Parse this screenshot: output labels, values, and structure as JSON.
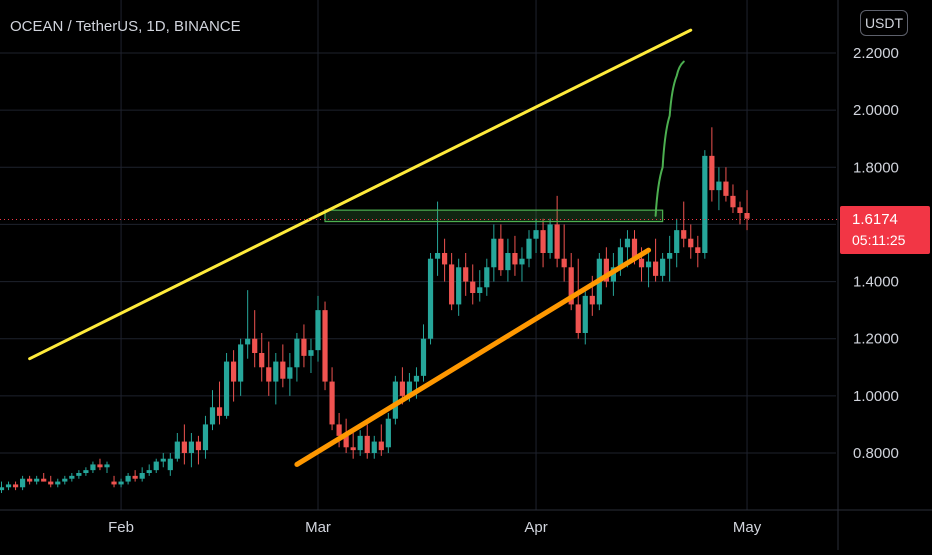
{
  "header": {
    "symbol_title": "OCEAN / TetherUS, 1D, BINANCE",
    "unit_label": "USDT"
  },
  "last_price": {
    "value": "1.6174",
    "countdown": "05:11:25"
  },
  "colors": {
    "background": "#000000",
    "grid": "#1e222d",
    "up": "#26a69a",
    "down": "#ef5350",
    "upper_trendline": "#ffeb3b",
    "lower_trendline": "#ff9800",
    "zone": "#4caf50",
    "projection": "#4caf50",
    "price_line": "#f23645",
    "axis_text": "#d1d4dc"
  },
  "chart_data": {
    "type": "candlestick",
    "title": "OCEAN / TetherUS, 1D, BINANCE",
    "y_unit": "USDT",
    "ylim": [
      0.65,
      2.33
    ],
    "y_ticks": [
      "0.8000",
      "1.0000",
      "1.2000",
      "1.4000",
      "1.6000",
      "1.8000",
      "2.0000",
      "2.2000"
    ],
    "x_ticks": [
      {
        "label": "Feb",
        "date": "2021-02-01"
      },
      {
        "label": "Mar",
        "date": "2021-03-01"
      },
      {
        "label": "Apr",
        "date": "2021-04-01"
      },
      {
        "label": "May",
        "date": "2021-05-01"
      }
    ],
    "grid": true,
    "x_start": "2021-01-12",
    "candles": [
      [
        0.66,
        0.67,
        0.66,
        0.66
      ],
      [
        0.66,
        0.66,
        0.65,
        0.66
      ],
      [
        0.66,
        0.68,
        0.66,
        0.67
      ],
      [
        0.67,
        0.7,
        0.66,
        0.68
      ],
      [
        0.68,
        0.7,
        0.67,
        0.69
      ],
      [
        0.69,
        0.7,
        0.67,
        0.68
      ],
      [
        0.68,
        0.72,
        0.67,
        0.71
      ],
      [
        0.71,
        0.72,
        0.69,
        0.7
      ],
      [
        0.7,
        0.72,
        0.69,
        0.71
      ],
      [
        0.71,
        0.73,
        0.7,
        0.7
      ],
      [
        0.7,
        0.72,
        0.68,
        0.69
      ],
      [
        0.69,
        0.71,
        0.68,
        0.7
      ],
      [
        0.7,
        0.72,
        0.69,
        0.71
      ],
      [
        0.71,
        0.73,
        0.7,
        0.72
      ],
      [
        0.72,
        0.74,
        0.71,
        0.73
      ],
      [
        0.73,
        0.75,
        0.72,
        0.74
      ],
      [
        0.74,
        0.77,
        0.73,
        0.76
      ],
      [
        0.76,
        0.78,
        0.74,
        0.75
      ],
      [
        0.75,
        0.77,
        0.73,
        0.76
      ],
      [
        0.7,
        0.72,
        0.68,
        0.69
      ],
      [
        0.69,
        0.71,
        0.68,
        0.7
      ],
      [
        0.7,
        0.73,
        0.69,
        0.72
      ],
      [
        0.72,
        0.74,
        0.7,
        0.71
      ],
      [
        0.71,
        0.75,
        0.7,
        0.73
      ],
      [
        0.73,
        0.76,
        0.72,
        0.74
      ],
      [
        0.74,
        0.78,
        0.73,
        0.77
      ],
      [
        0.77,
        0.8,
        0.75,
        0.78
      ],
      [
        0.74,
        0.8,
        0.72,
        0.78
      ],
      [
        0.78,
        0.87,
        0.77,
        0.84
      ],
      [
        0.84,
        0.9,
        0.76,
        0.8
      ],
      [
        0.8,
        0.87,
        0.75,
        0.84
      ],
      [
        0.84,
        0.86,
        0.76,
        0.81
      ],
      [
        0.81,
        0.93,
        0.78,
        0.9
      ],
      [
        0.9,
        1.02,
        0.88,
        0.96
      ],
      [
        0.96,
        1.05,
        0.9,
        0.93
      ],
      [
        0.93,
        1.15,
        0.92,
        1.12
      ],
      [
        1.12,
        1.16,
        0.98,
        1.05
      ],
      [
        1.05,
        1.2,
        1.0,
        1.18
      ],
      [
        1.18,
        1.37,
        1.13,
        1.2
      ],
      [
        1.2,
        1.3,
        1.1,
        1.15
      ],
      [
        1.15,
        1.22,
        1.05,
        1.1
      ],
      [
        1.1,
        1.19,
        1.0,
        1.05
      ],
      [
        1.05,
        1.15,
        0.97,
        1.12
      ],
      [
        1.12,
        1.18,
        1.03,
        1.06
      ],
      [
        1.06,
        1.15,
        1.0,
        1.1
      ],
      [
        1.1,
        1.22,
        1.05,
        1.2
      ],
      [
        1.2,
        1.25,
        1.1,
        1.14
      ],
      [
        1.14,
        1.2,
        1.08,
        1.16
      ],
      [
        1.16,
        1.35,
        1.12,
        1.3
      ],
      [
        1.3,
        1.33,
        1.02,
        1.05
      ],
      [
        1.05,
        1.1,
        0.88,
        0.9
      ],
      [
        0.9,
        0.94,
        0.82,
        0.86
      ],
      [
        0.86,
        0.92,
        0.8,
        0.82
      ],
      [
        0.82,
        0.87,
        0.78,
        0.81
      ],
      [
        0.81,
        0.88,
        0.79,
        0.86
      ],
      [
        0.86,
        0.9,
        0.78,
        0.8
      ],
      [
        0.8,
        0.86,
        0.78,
        0.84
      ],
      [
        0.84,
        0.9,
        0.79,
        0.81
      ],
      [
        0.82,
        0.94,
        0.8,
        0.92
      ],
      [
        0.92,
        1.07,
        0.9,
        1.05
      ],
      [
        1.05,
        1.1,
        0.97,
        1.0
      ],
      [
        1.0,
        1.08,
        0.98,
        1.05
      ],
      [
        1.05,
        1.1,
        0.99,
        1.07
      ],
      [
        1.07,
        1.25,
        1.05,
        1.2
      ],
      [
        1.2,
        1.5,
        1.18,
        1.48
      ],
      [
        1.48,
        1.68,
        1.42,
        1.5
      ],
      [
        1.5,
        1.55,
        1.4,
        1.46
      ],
      [
        1.46,
        1.5,
        1.3,
        1.32
      ],
      [
        1.32,
        1.48,
        1.28,
        1.45
      ],
      [
        1.45,
        1.5,
        1.35,
        1.4
      ],
      [
        1.4,
        1.46,
        1.32,
        1.36
      ],
      [
        1.36,
        1.44,
        1.33,
        1.38
      ],
      [
        1.38,
        1.48,
        1.35,
        1.45
      ],
      [
        1.45,
        1.6,
        1.4,
        1.55
      ],
      [
        1.55,
        1.6,
        1.42,
        1.44
      ],
      [
        1.44,
        1.55,
        1.4,
        1.5
      ],
      [
        1.5,
        1.56,
        1.42,
        1.46
      ],
      [
        1.46,
        1.52,
        1.4,
        1.48
      ],
      [
        1.48,
        1.58,
        1.45,
        1.55
      ],
      [
        1.55,
        1.62,
        1.5,
        1.58
      ],
      [
        1.58,
        1.62,
        1.45,
        1.5
      ],
      [
        1.5,
        1.62,
        1.48,
        1.6
      ],
      [
        1.6,
        1.7,
        1.45,
        1.48
      ],
      [
        1.48,
        1.6,
        1.4,
        1.45
      ],
      [
        1.45,
        1.5,
        1.3,
        1.32
      ],
      [
        1.32,
        1.48,
        1.2,
        1.22
      ],
      [
        1.22,
        1.38,
        1.18,
        1.35
      ],
      [
        1.35,
        1.42,
        1.28,
        1.32
      ],
      [
        1.32,
        1.5,
        1.3,
        1.48
      ],
      [
        1.48,
        1.52,
        1.38,
        1.4
      ],
      [
        1.4,
        1.5,
        1.35,
        1.45
      ],
      [
        1.45,
        1.55,
        1.42,
        1.52
      ],
      [
        1.52,
        1.58,
        1.45,
        1.55
      ],
      [
        1.55,
        1.58,
        1.46,
        1.48
      ],
      [
        1.48,
        1.52,
        1.4,
        1.45
      ],
      [
        1.45,
        1.5,
        1.38,
        1.47
      ],
      [
        1.47,
        1.55,
        1.4,
        1.42
      ],
      [
        1.42,
        1.5,
        1.4,
        1.48
      ],
      [
        1.48,
        1.56,
        1.4,
        1.5
      ],
      [
        1.5,
        1.62,
        1.45,
        1.58
      ],
      [
        1.58,
        1.68,
        1.52,
        1.55
      ],
      [
        1.55,
        1.6,
        1.48,
        1.52
      ],
      [
        1.52,
        1.56,
        1.45,
        1.5
      ],
      [
        1.5,
        1.86,
        1.48,
        1.84
      ],
      [
        1.84,
        1.94,
        1.68,
        1.72
      ],
      [
        1.72,
        1.8,
        1.65,
        1.75
      ],
      [
        1.75,
        1.8,
        1.68,
        1.7
      ],
      [
        1.7,
        1.74,
        1.64,
        1.66
      ],
      [
        1.66,
        1.68,
        1.6,
        1.64
      ],
      [
        1.64,
        1.72,
        1.58,
        1.62
      ]
    ],
    "annotations": {
      "upper_trendline": {
        "from": {
          "date": "2021-01-19",
          "price": 1.13
        },
        "to": {
          "date": "2021-04-23",
          "price": 2.28
        }
      },
      "lower_trendline": {
        "from": {
          "date": "2021-02-26",
          "price": 0.76
        },
        "to": {
          "date": "2021-04-17",
          "price": 1.51
        }
      },
      "resistance_zone": {
        "from_date": "2021-03-02",
        "to_date": "2021-04-19",
        "low": 1.61,
        "high": 1.65
      },
      "projection": [
        {
          "date": "2021-04-18",
          "price": 1.63
        },
        {
          "date": "2021-04-19",
          "price": 1.8
        },
        {
          "date": "2021-04-20",
          "price": 1.98
        },
        {
          "date": "2021-04-21",
          "price": 2.12
        },
        {
          "date": "2021-04-22",
          "price": 2.17
        }
      ]
    }
  }
}
